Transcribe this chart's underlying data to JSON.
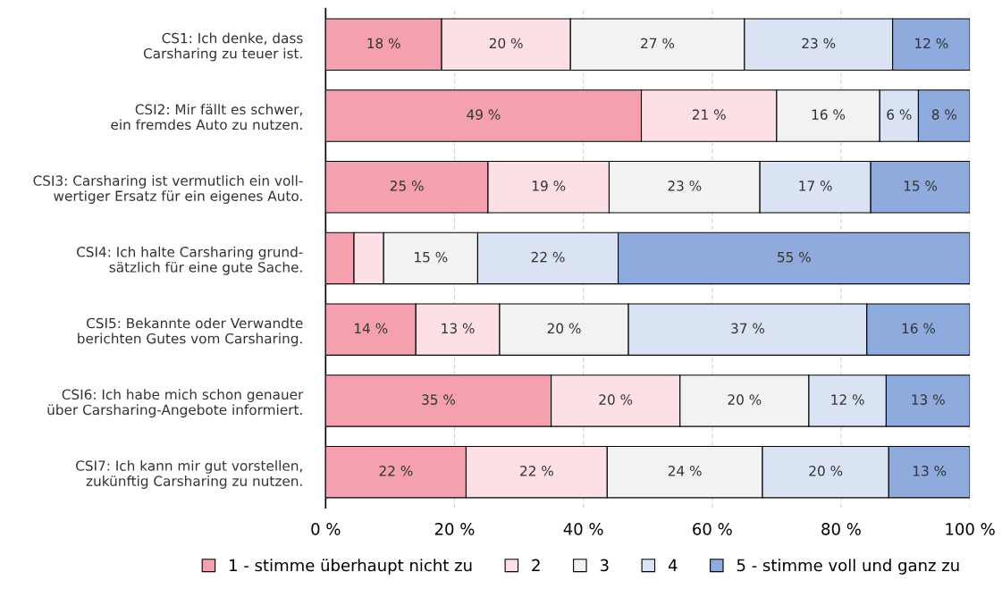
{
  "chart_data": {
    "type": "bar",
    "orientation": "horizontal",
    "stacked": true,
    "categories": [
      "CS1: Ich denke, dass\nCarsharing zu teuer ist.",
      "CSI2: Mir fällt es schwer,\nein fremdes Auto zu nutzen.",
      "CSI3: Carsharing ist vermutlich ein voll-\nwertiger Ersatz für ein eigenes Auto.",
      "CSI4: Ich halte Carsharing grund-\nsätzlich für eine gute Sache.",
      "CSI5: Bekannte oder Verwandte\nberichten Gutes vom Carsharing.",
      "CSI6: Ich habe mich schon genauer\nüber Carsharing-Angebote informiert.",
      "CSI7: Ich kann mir gut vorstellen,\nzukünftig Carsharing zu nutzen."
    ],
    "series": [
      {
        "name": "1 - stimme überhaupt nicht zu",
        "color": "#f4a0ae",
        "values": [
          18,
          49,
          25.2,
          4.4,
          14,
          35,
          21.8
        ],
        "value_labels": [
          "18 %",
          "49 %",
          "25 %",
          null,
          "14 %",
          "35 %",
          "22 %"
        ]
      },
      {
        "name": "2",
        "color": "#fde0e6",
        "values": [
          20,
          21,
          18.8,
          4.6,
          13,
          20,
          21.9
        ],
        "value_labels": [
          "20 %",
          "21 %",
          "19 %",
          null,
          "13 %",
          "20 %",
          "22 %"
        ]
      },
      {
        "name": "3",
        "color": "#f2f2f2",
        "values": [
          27,
          16,
          23.4,
          14.6,
          20,
          20,
          24.1
        ],
        "value_labels": [
          "27 %",
          "16 %",
          "23 %",
          "15 %",
          "20 %",
          "20 %",
          "24 %"
        ]
      },
      {
        "name": "4",
        "color": "#dae3f3",
        "values": [
          23,
          6,
          17.2,
          21.8,
          37,
          12,
          19.6
        ],
        "value_labels": [
          "23 %",
          "6 %",
          "17 %",
          "22 %",
          "37 %",
          "12 %",
          "20 %"
        ]
      },
      {
        "name": "5 - stimme voll und ganz zu",
        "color": "#8faadc",
        "values": [
          12,
          8,
          15.4,
          54.6,
          16,
          13,
          12.6
        ],
        "value_labels": [
          "12 %",
          "8 %",
          "15 %",
          "55 %",
          "16 %",
          "13 %",
          "13 %"
        ]
      }
    ],
    "xlim": [
      0,
      100
    ],
    "xticks": [
      {
        "value": 0,
        "label": "0 %"
      },
      {
        "value": 20,
        "label": "20 %"
      },
      {
        "value": 40,
        "label": "40 %"
      },
      {
        "value": 60,
        "label": "60 %"
      },
      {
        "value": 80,
        "label": "80 %"
      },
      {
        "value": 100,
        "label": "100 %"
      }
    ],
    "grid": "x",
    "legend": "bottom"
  }
}
